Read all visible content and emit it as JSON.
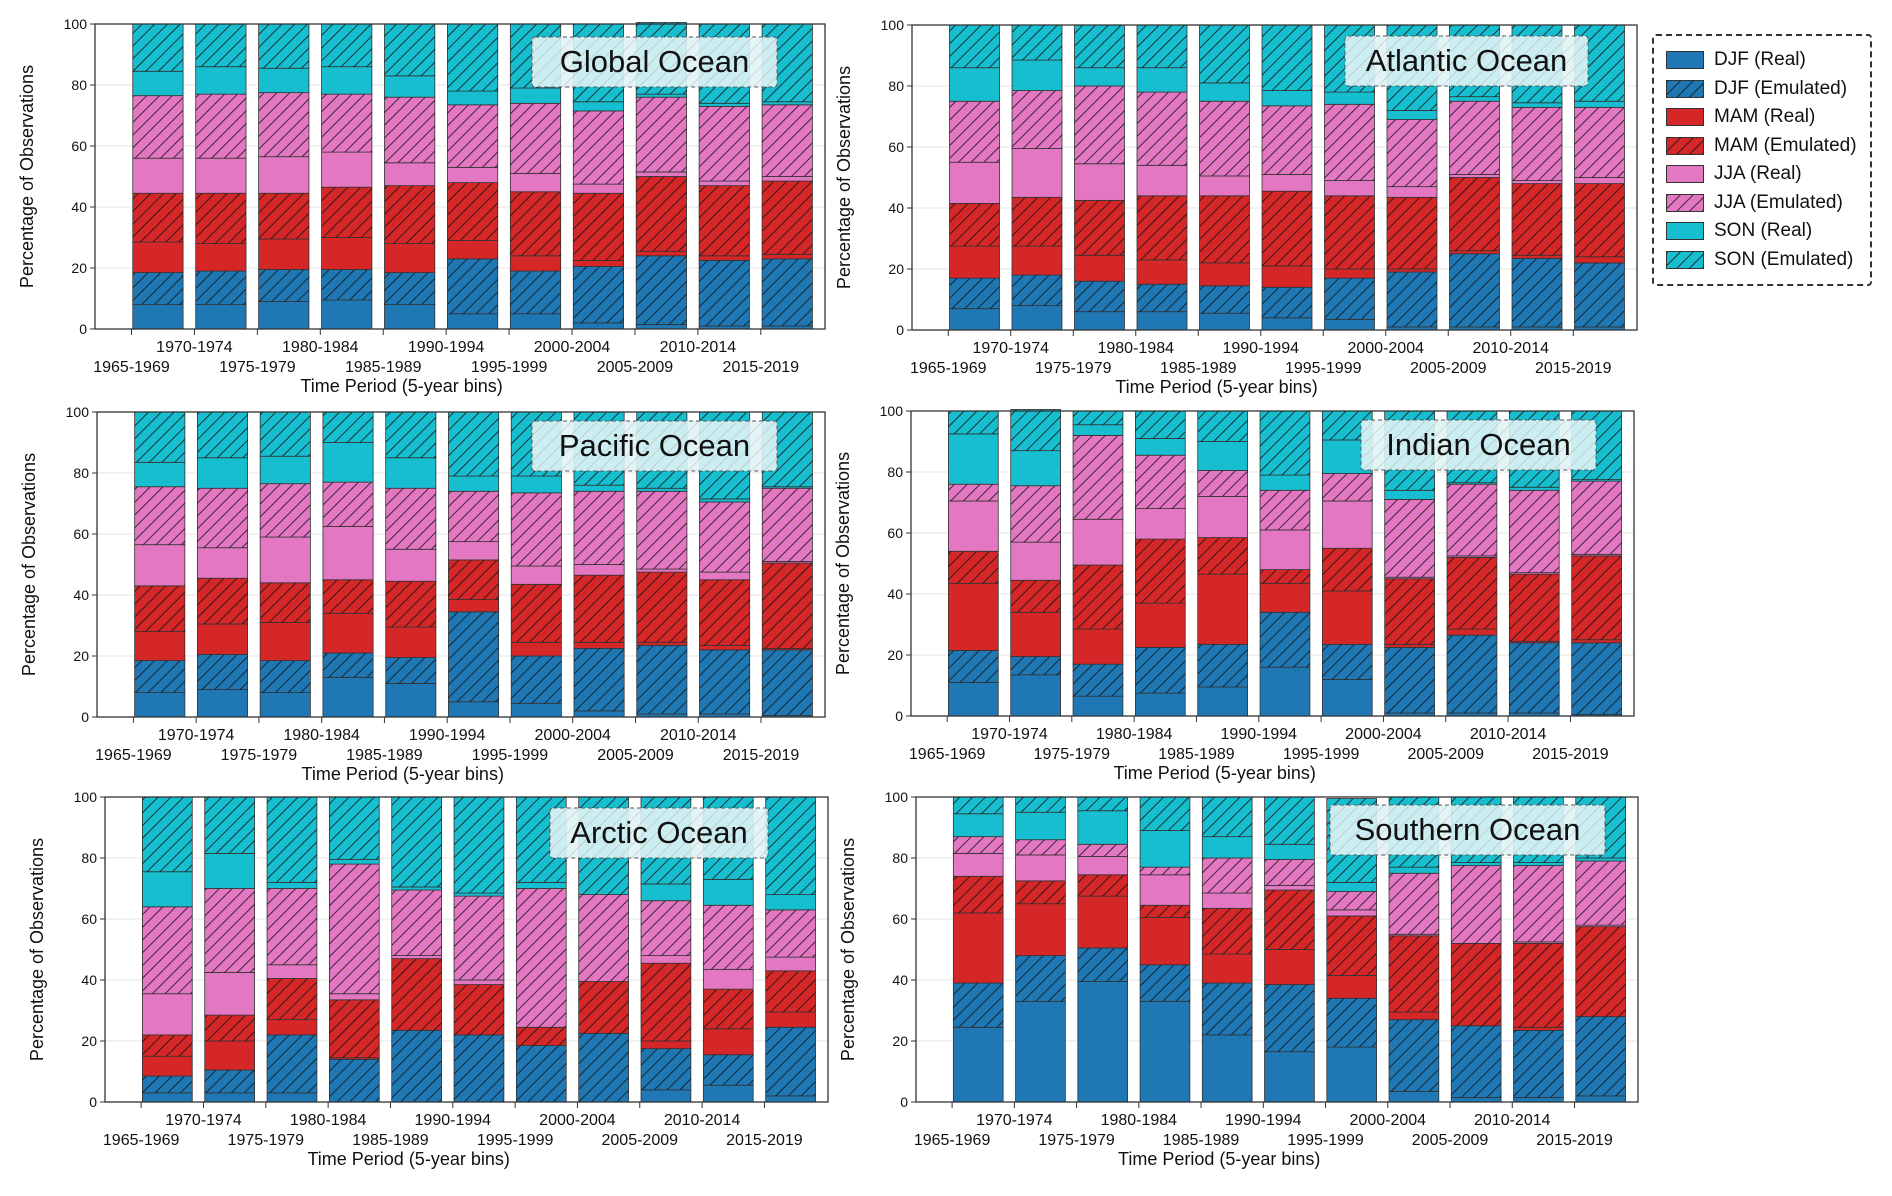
{
  "figure": {
    "series_legend": [
      {
        "label": "DJF (Real)",
        "color": "#1f77b4",
        "hatched": false
      },
      {
        "label": "DJF (Emulated)",
        "color": "#1f77b4",
        "hatched": true
      },
      {
        "label": "MAM (Real)",
        "color": "#d62728",
        "hatched": false
      },
      {
        "label": "MAM (Emulated)",
        "color": "#d62728",
        "hatched": true
      },
      {
        "label": "JJA (Real)",
        "color": "#e377c2",
        "hatched": false
      },
      {
        "label": "JJA (Emulated)",
        "color": "#e377c2",
        "hatched": true
      },
      {
        "label": "SON (Real)",
        "color": "#17becf",
        "hatched": false
      },
      {
        "label": "SON (Emulated)",
        "color": "#17becf",
        "hatched": true
      }
    ]
  },
  "chart_data": [
    {
      "type": "bar",
      "stacked": true,
      "title": "Global Ocean",
      "xlabel": "Time Period (5-year bins)",
      "ylabel": "Percentage of Observations",
      "ylim": [
        0,
        100
      ],
      "yticks": [
        0,
        20,
        40,
        60,
        80,
        100
      ],
      "grid": true,
      "categories": [
        "1965-1969",
        "1970-1974",
        "1975-1979",
        "1980-1984",
        "1985-1989",
        "1990-1994",
        "1995-1999",
        "2000-2004",
        "2005-2009",
        "2010-2014",
        "2015-2019"
      ],
      "series": [
        {
          "name": "DJF (Real)",
          "values": [
            8,
            8,
            9,
            9.5,
            8,
            5,
            5,
            2,
            1.5,
            1,
            1
          ]
        },
        {
          "name": "DJF (Emulated)",
          "values": [
            10.5,
            11,
            10.5,
            10,
            10.5,
            18,
            14,
            18.5,
            22.5,
            21.5,
            22
          ]
        },
        {
          "name": "MAM (Real)",
          "values": [
            10,
            9,
            10,
            10.5,
            9.5,
            6,
            5,
            2,
            1.5,
            1.5,
            1.5
          ]
        },
        {
          "name": "MAM (Emulated)",
          "values": [
            16,
            16.5,
            15,
            16.5,
            19,
            19,
            21,
            22,
            24.5,
            23,
            24
          ]
        },
        {
          "name": "JJA (Real)",
          "values": [
            11.5,
            11.5,
            12,
            11.5,
            7.5,
            5,
            6,
            3,
            1.5,
            1.5,
            1.5
          ]
        },
        {
          "name": "JJA (Emulated)",
          "values": [
            20.5,
            21,
            21,
            19,
            21.5,
            20.5,
            23,
            24,
            24.5,
            24.5,
            23.5
          ]
        },
        {
          "name": "SON (Real)",
          "values": [
            8,
            9,
            8,
            9,
            7,
            4.5,
            5,
            3,
            1,
            1,
            1
          ]
        },
        {
          "name": "SON (Emulated)",
          "values": [
            15.5,
            14,
            14.5,
            14,
            17,
            22,
            21,
            25.5,
            23.5,
            26,
            25.5
          ]
        }
      ]
    },
    {
      "type": "bar",
      "stacked": true,
      "title": "Atlantic Ocean",
      "xlabel": "Time Period (5-year bins)",
      "ylabel": "Percentage of Observations",
      "ylim": [
        0,
        100
      ],
      "yticks": [
        0,
        20,
        40,
        60,
        80,
        100
      ],
      "grid": true,
      "categories": [
        "1965-1969",
        "1970-1974",
        "1975-1979",
        "1980-1984",
        "1985-1989",
        "1990-1994",
        "1995-1999",
        "2000-2004",
        "2005-2009",
        "2010-2014",
        "2015-2019"
      ],
      "series": [
        {
          "name": "DJF (Real)",
          "values": [
            7,
            8,
            6,
            6,
            5.5,
            4,
            3.5,
            1,
            1,
            1,
            1
          ]
        },
        {
          "name": "DJF (Emulated)",
          "values": [
            10,
            10,
            10,
            9,
            9,
            10,
            13.5,
            18,
            24,
            22.5,
            21
          ]
        },
        {
          "name": "MAM (Real)",
          "values": [
            10.5,
            9.5,
            8.5,
            8,
            7.5,
            7,
            3,
            1,
            1,
            1,
            2
          ]
        },
        {
          "name": "MAM (Emulated)",
          "values": [
            14,
            16,
            18,
            21,
            22,
            24.5,
            24,
            23.5,
            24,
            23.5,
            24
          ]
        },
        {
          "name": "JJA (Real)",
          "values": [
            13.5,
            16,
            12,
            10,
            6.5,
            5.5,
            5,
            3.5,
            1,
            1,
            2
          ]
        },
        {
          "name": "JJA (Emulated)",
          "values": [
            20,
            19,
            25.5,
            24,
            24.5,
            22.5,
            25,
            22,
            24,
            24,
            23
          ]
        },
        {
          "name": "SON (Real)",
          "values": [
            11,
            10,
            6,
            8,
            6,
            5,
            4,
            3,
            1.5,
            1.5,
            2
          ]
        },
        {
          "name": "SON (Emulated)",
          "values": [
            14,
            11.5,
            14,
            14,
            19,
            21.5,
            22,
            28,
            23.5,
            25.5,
            25
          ]
        }
      ]
    },
    {
      "type": "bar",
      "stacked": true,
      "title": "Pacific Ocean",
      "xlabel": "Time Period (5-year bins)",
      "ylabel": "Percentage of Observations",
      "ylim": [
        0,
        100
      ],
      "yticks": [
        0,
        20,
        40,
        60,
        80,
        100
      ],
      "grid": true,
      "categories": [
        "1965-1969",
        "1970-1974",
        "1975-1979",
        "1980-1984",
        "1985-1989",
        "1990-1994",
        "1995-1999",
        "2000-2004",
        "2005-2009",
        "2010-2014",
        "2015-2019"
      ],
      "series": [
        {
          "name": "DJF (Real)",
          "values": [
            8,
            9,
            8,
            13,
            11,
            5,
            4.5,
            2,
            1,
            1,
            0.5
          ]
        },
        {
          "name": "DJF (Emulated)",
          "values": [
            10.5,
            11.5,
            10.5,
            8,
            8.5,
            29.5,
            15.5,
            20.5,
            22.5,
            21,
            21.5
          ]
        },
        {
          "name": "MAM (Real)",
          "values": [
            9.5,
            10,
            12.5,
            13,
            10,
            4,
            4.5,
            2,
            1,
            1.5,
            0.5
          ]
        },
        {
          "name": "MAM (Emulated)",
          "values": [
            15,
            15,
            13,
            11,
            15,
            13,
            19,
            22,
            23,
            21.5,
            28
          ]
        },
        {
          "name": "JJA (Real)",
          "values": [
            13.5,
            10,
            15,
            17.5,
            10.5,
            6,
            6,
            3.5,
            1,
            2.5,
            0.5
          ]
        },
        {
          "name": "JJA (Emulated)",
          "values": [
            19,
            19.5,
            17.5,
            14.5,
            20,
            16.5,
            24,
            24,
            25.5,
            23,
            24
          ]
        },
        {
          "name": "SON (Real)",
          "values": [
            8,
            10,
            9,
            13,
            10,
            5,
            5.5,
            2,
            1,
            1,
            0.5
          ]
        },
        {
          "name": "SON (Emulated)",
          "values": [
            16.5,
            15,
            14.5,
            10,
            15,
            21,
            21,
            24,
            25,
            28.5,
            24.5
          ]
        }
      ]
    },
    {
      "type": "bar",
      "stacked": true,
      "title": "Indian Ocean",
      "xlabel": "Time Period (5-year bins)",
      "ylabel": "Percentage of Observations",
      "ylim": [
        0,
        100
      ],
      "yticks": [
        0,
        20,
        40,
        60,
        80,
        100
      ],
      "grid": true,
      "categories": [
        "1965-1969",
        "1970-1974",
        "1975-1979",
        "1980-1984",
        "1985-1989",
        "1990-1994",
        "1995-1999",
        "2000-2004",
        "2005-2009",
        "2010-2014",
        "2015-2019"
      ],
      "series": [
        {
          "name": "DJF (Real)",
          "values": [
            11,
            13.5,
            6.5,
            7.5,
            9.5,
            16,
            12,
            1,
            1,
            1,
            0.5
          ]
        },
        {
          "name": "DJF (Emulated)",
          "values": [
            10.5,
            6,
            10.5,
            15,
            14,
            18,
            11.5,
            21.5,
            25.5,
            23,
            23.5
          ]
        },
        {
          "name": "MAM (Real)",
          "values": [
            22,
            14.5,
            11.5,
            14.5,
            23,
            9.5,
            17.5,
            1,
            2,
            0.5,
            1
          ]
        },
        {
          "name": "MAM (Emulated)",
          "values": [
            10.5,
            10.5,
            21,
            21,
            12,
            4.5,
            14,
            21.5,
            23.5,
            22,
            27.5
          ]
        },
        {
          "name": "JJA (Real)",
          "values": [
            16.5,
            12.5,
            15,
            10,
            13.5,
            13,
            15.5,
            0.5,
            0.5,
            0.5,
            0.5
          ]
        },
        {
          "name": "JJA (Emulated)",
          "values": [
            5.5,
            18.5,
            27.5,
            17.5,
            8.5,
            13,
            9,
            25.5,
            23.5,
            27,
            24
          ]
        },
        {
          "name": "SON (Real)",
          "values": [
            16.5,
            11.5,
            3.5,
            5.5,
            9.5,
            5,
            11,
            3,
            0.5,
            1,
            0.5
          ]
        },
        {
          "name": "SON (Emulated)",
          "values": [
            7.5,
            13.5,
            4.5,
            9,
            10,
            21,
            9.5,
            26,
            23.5,
            25,
            22.5
          ]
        }
      ]
    },
    {
      "type": "bar",
      "stacked": true,
      "title": "Arctic Ocean",
      "xlabel": "Time Period (5-year bins)",
      "ylabel": "Percentage of Observations",
      "ylim": [
        0,
        100
      ],
      "yticks": [
        0,
        20,
        40,
        60,
        80,
        100
      ],
      "grid": true,
      "categories": [
        "1965-1969",
        "1970-1974",
        "1975-1979",
        "1980-1984",
        "1985-1989",
        "1990-1994",
        "1995-1999",
        "2000-2004",
        "2005-2009",
        "2010-2014",
        "2015-2019"
      ],
      "series": [
        {
          "name": "DJF (Real)",
          "values": [
            3,
            3,
            3,
            0,
            0,
            0,
            0,
            0,
            4,
            5.5,
            2
          ]
        },
        {
          "name": "DJF (Emulated)",
          "values": [
            5.5,
            7.5,
            19,
            14,
            23.5,
            22,
            18.5,
            22.5,
            13.5,
            10,
            22.5
          ]
        },
        {
          "name": "MAM (Real)",
          "values": [
            6.5,
            9.5,
            5,
            0.5,
            0,
            0,
            0,
            0,
            2.5,
            8.5,
            5
          ]
        },
        {
          "name": "MAM (Emulated)",
          "values": [
            7,
            8.5,
            13.5,
            19,
            23.5,
            16.5,
            6,
            17,
            25.5,
            13,
            13.5
          ]
        },
        {
          "name": "JJA (Real)",
          "values": [
            13.5,
            14,
            4.5,
            2,
            1,
            1.5,
            0,
            0,
            2.5,
            6.5,
            4.5
          ]
        },
        {
          "name": "JJA (Emulated)",
          "values": [
            28.5,
            27.5,
            25,
            42.5,
            21.5,
            27.5,
            45.5,
            28.5,
            18,
            21,
            15.5
          ]
        },
        {
          "name": "SON (Real)",
          "values": [
            11.5,
            11.5,
            2,
            1.5,
            1,
            1,
            2,
            0,
            5.5,
            8.5,
            5
          ]
        },
        {
          "name": "SON (Emulated)",
          "values": [
            24.5,
            18.5,
            28,
            20.5,
            29.5,
            31.5,
            28,
            32,
            28.5,
            27,
            32
          ]
        }
      ]
    },
    {
      "type": "bar",
      "stacked": true,
      "title": "Southern Ocean",
      "xlabel": "Time Period (5-year bins)",
      "ylabel": "Percentage of Observations",
      "ylim": [
        0,
        100
      ],
      "yticks": [
        0,
        20,
        40,
        60,
        80,
        100
      ],
      "grid": true,
      "categories": [
        "1965-1969",
        "1970-1974",
        "1975-1979",
        "1980-1984",
        "1985-1989",
        "1990-1994",
        "1995-1999",
        "2000-2004",
        "2005-2009",
        "2010-2014",
        "2015-2019"
      ],
      "series": [
        {
          "name": "DJF (Real)",
          "values": [
            24.5,
            33,
            39.5,
            33,
            22,
            16.5,
            18,
            3.5,
            1.5,
            1.5,
            2
          ]
        },
        {
          "name": "DJF (Emulated)",
          "values": [
            14.5,
            15,
            11,
            12,
            17,
            22,
            16,
            23.5,
            23.5,
            22,
            26
          ]
        },
        {
          "name": "MAM (Real)",
          "values": [
            23,
            17,
            17,
            15.5,
            9.5,
            11.5,
            7.5,
            2.5,
            0,
            1,
            0
          ]
        },
        {
          "name": "MAM (Emulated)",
          "values": [
            12,
            7.5,
            7,
            4,
            15,
            19.5,
            19.5,
            25,
            27,
            27.5,
            29.5
          ]
        },
        {
          "name": "JJA (Real)",
          "values": [
            7.5,
            8.5,
            6,
            10,
            5,
            1.5,
            2,
            0.5,
            0,
            0.5,
            0.5
          ]
        },
        {
          "name": "JJA (Emulated)",
          "values": [
            5.5,
            5,
            4,
            2.5,
            11.5,
            8.5,
            6,
            20,
            25.5,
            25,
            21
          ]
        },
        {
          "name": "SON (Real)",
          "values": [
            7.5,
            9,
            11,
            12,
            7,
            5,
            3,
            2,
            1,
            1,
            1
          ]
        },
        {
          "name": "SON (Emulated)",
          "values": [
            5.5,
            5,
            4.5,
            11,
            13,
            15.5,
            27.5,
            23,
            21.5,
            21.5,
            20
          ]
        }
      ]
    }
  ]
}
